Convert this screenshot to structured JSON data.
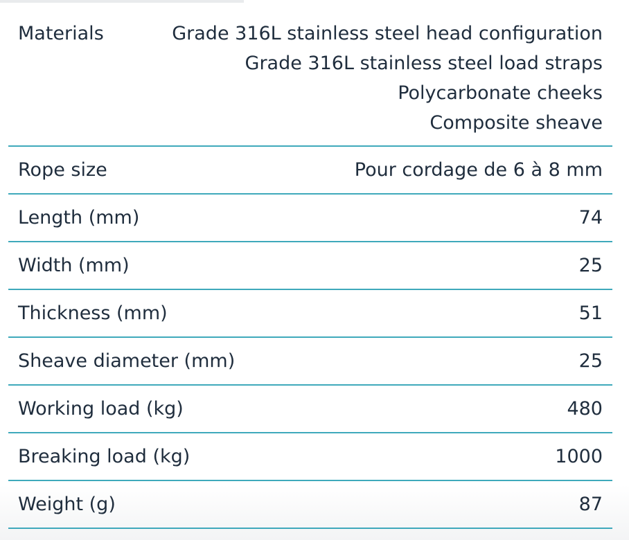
{
  "table": {
    "rows": [
      {
        "label": "Materials",
        "value": [
          "Grade 316L stainless steel head configuration",
          "Grade 316L stainless steel load straps",
          "Polycarbonate cheeks",
          "Composite sheave"
        ]
      },
      {
        "label": "Rope size",
        "value": "Pour cordage de 6 à 8 mm"
      },
      {
        "label": "Length (mm)",
        "value": 74
      },
      {
        "label": "Width (mm)",
        "value": 25
      },
      {
        "label": "Thickness (mm)",
        "value": 51
      },
      {
        "label": "Sheave diameter (mm)",
        "value": 25
      },
      {
        "label": "Working load (kg)",
        "value": 480
      },
      {
        "label": "Breaking load (kg)",
        "value": 1000
      },
      {
        "label": "Weight (g)",
        "value": 87
      }
    ]
  }
}
